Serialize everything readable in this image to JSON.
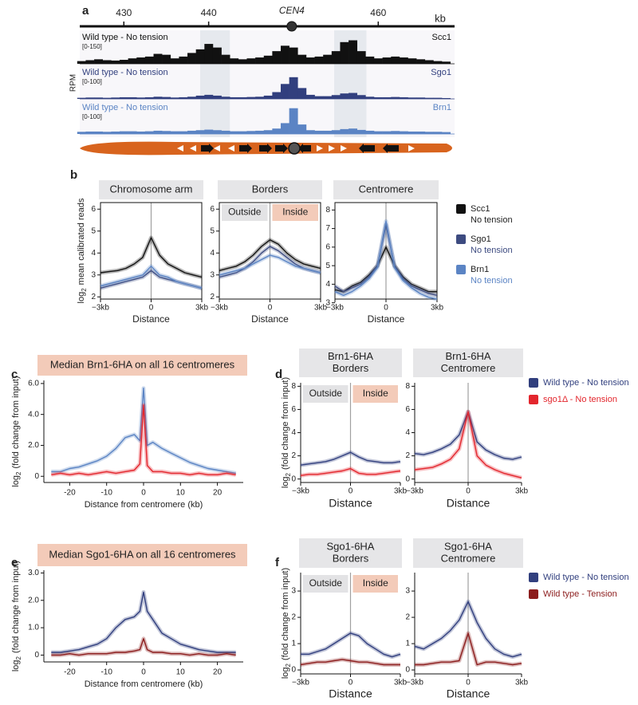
{
  "chart_data": [
    {
      "type": "track",
      "panel": "a",
      "label": "CEN4",
      "centromere": 449.8,
      "xunit": "kb",
      "xlim": [
        424.8,
        469
      ],
      "xticks": [
        430,
        440,
        460
      ],
      "ylabel": "RPM",
      "highlights": [
        [
          439,
          442.5
        ],
        [
          454.8,
          458.6
        ]
      ],
      "x": [
        425,
        426,
        427,
        428,
        429,
        430,
        431,
        432,
        433,
        434,
        435,
        436,
        437,
        438,
        439,
        440,
        441,
        442,
        443,
        444,
        445,
        446,
        447,
        448,
        449,
        450,
        451,
        452,
        453,
        454,
        455,
        456,
        457,
        458,
        459,
        460,
        461,
        462,
        463,
        464,
        465,
        466,
        467,
        468
      ],
      "tracks": [
        {
          "name": "Wild type - No tension",
          "range": "[0-150]",
          "protein": "Scc1",
          "color": "#111111",
          "ylim": [
            0,
            150
          ],
          "values": [
            15,
            20,
            25,
            20,
            18,
            22,
            30,
            35,
            40,
            55,
            50,
            30,
            40,
            60,
            80,
            110,
            90,
            50,
            30,
            25,
            30,
            35,
            45,
            70,
            100,
            90,
            50,
            35,
            40,
            50,
            70,
            120,
            130,
            70,
            40,
            30,
            35,
            40,
            35,
            30,
            25,
            20,
            15,
            12
          ]
        },
        {
          "name": "Wild type - No tension",
          "range": "[0-100]",
          "protein": "Sgo1",
          "color": "#313f7e",
          "ylim": [
            0,
            100
          ],
          "values": [
            4,
            5,
            5,
            4,
            5,
            6,
            6,
            5,
            6,
            8,
            7,
            5,
            6,
            8,
            12,
            15,
            12,
            8,
            6,
            6,
            7,
            8,
            12,
            25,
            55,
            80,
            40,
            15,
            10,
            10,
            14,
            20,
            22,
            14,
            8,
            6,
            6,
            7,
            6,
            5,
            5,
            4,
            4,
            3
          ]
        },
        {
          "name": "Wild type - No tension",
          "range": "[0-100]",
          "protein": "Brn1",
          "color": "#5b84c4",
          "ylim": [
            0,
            100
          ],
          "values": [
            8,
            9,
            9,
            8,
            9,
            10,
            10,
            9,
            10,
            12,
            11,
            10,
            10,
            12,
            14,
            16,
            14,
            12,
            10,
            10,
            11,
            12,
            14,
            20,
            40,
            95,
            35,
            14,
            12,
            12,
            14,
            18,
            20,
            15,
            12,
            10,
            10,
            11,
            10,
            9,
            9,
            8,
            8,
            7
          ]
        }
      ]
    },
    {
      "type": "line",
      "panel": "b",
      "x": [
        -3,
        -2.5,
        -2,
        -1.5,
        -1,
        -0.5,
        0,
        0.5,
        1,
        1.5,
        2,
        2.5,
        3
      ],
      "xlim": [
        -3,
        3
      ],
      "xticks": [
        {
          "value": -3,
          "label": "−3kb"
        },
        0,
        {
          "value": 3,
          "label": "3kb"
        }
      ],
      "xlabel": "Distance",
      "ylabel": {
        "prefix": "log",
        "sub": "2",
        "text": "mean calibrated reads"
      },
      "series": [
        {
          "name": "Scc1",
          "sub": "No tension",
          "color": "#111111"
        },
        {
          "name": "Sgo1",
          "sub": "No tension",
          "color": "#3d4b80"
        },
        {
          "name": "Brn1",
          "sub": "No tension",
          "color": "#5b84c4"
        }
      ],
      "facets": [
        {
          "title": [
            "Chromosome arm"
          ],
          "ylim": [
            1.9,
            6.3
          ],
          "yticks": [
            2,
            3,
            4,
            5,
            6
          ],
          "values": [
            [
              3.1,
              3.15,
              3.2,
              3.3,
              3.5,
              3.8,
              4.7,
              3.9,
              3.5,
              3.3,
              3.1,
              3.0,
              2.9
            ],
            [
              2.4,
              2.5,
              2.6,
              2.7,
              2.8,
              2.9,
              3.2,
              2.9,
              2.8,
              2.7,
              2.6,
              2.5,
              2.4
            ],
            [
              2.5,
              2.6,
              2.7,
              2.8,
              2.9,
              3.0,
              3.4,
              3.0,
              2.9,
              2.7,
              2.6,
              2.5,
              2.4
            ]
          ]
        },
        {
          "title": [
            "Borders"
          ],
          "regions": [
            "Outside",
            "Inside"
          ],
          "ylim": [
            1.9,
            6.3
          ],
          "yticks": [
            2,
            3,
            4,
            5,
            6
          ],
          "values": [
            [
              3.2,
              3.3,
              3.4,
              3.6,
              3.9,
              4.3,
              4.6,
              4.4,
              4.0,
              3.7,
              3.5,
              3.4,
              3.3
            ],
            [
              2.9,
              3.0,
              3.1,
              3.3,
              3.6,
              4.0,
              4.3,
              4.1,
              3.8,
              3.5,
              3.3,
              3.2,
              3.1
            ],
            [
              3.0,
              3.1,
              3.2,
              3.3,
              3.5,
              3.7,
              3.9,
              3.8,
              3.6,
              3.4,
              3.3,
              3.2,
              3.1
            ]
          ]
        },
        {
          "title": [
            "Centromere"
          ],
          "ylim": [
            3.2,
            8.4
          ],
          "yticks": [
            3,
            4,
            5,
            6,
            7,
            8
          ],
          "values": [
            [
              3.7,
              3.6,
              3.9,
              4.1,
              4.5,
              5.0,
              6.0,
              5.0,
              4.4,
              4.0,
              3.8,
              3.6,
              3.6
            ],
            [
              3.9,
              3.6,
              3.8,
              4.0,
              4.4,
              5.0,
              7.2,
              5.0,
              4.3,
              3.9,
              3.7,
              3.5,
              3.4
            ],
            [
              3.6,
              3.4,
              3.6,
              3.9,
              4.3,
              4.9,
              7.4,
              4.9,
              4.2,
              3.8,
              3.5,
              3.3,
              3.2
            ]
          ]
        }
      ]
    },
    {
      "type": "line",
      "panel": "c",
      "x": [
        -25,
        -22.5,
        -20,
        -17.5,
        -15,
        -12.5,
        -10,
        -7.5,
        -5,
        -2.5,
        -1,
        0,
        1,
        2.5,
        5,
        7.5,
        10,
        12.5,
        15,
        17.5,
        20,
        22.5,
        25
      ],
      "xlim": [
        -27,
        27
      ],
      "xticks": [
        -20,
        -10,
        0,
        10,
        20
      ],
      "xlabel": "Distance from centromere (kb)",
      "ylabel": {
        "prefix": "log",
        "sub": "2",
        "text": "(fold change from input)"
      },
      "series": [
        {
          "color": "#5b84c4"
        },
        {
          "color": "#e3262d"
        }
      ],
      "facets": [
        {
          "title": [
            "Median Brn1-6HA on all 16 centromeres"
          ],
          "ylim": [
            -0.4,
            6.2
          ],
          "yticks": [
            0,
            {
              "value": 2,
              "label": "2.0"
            },
            {
              "value": 4,
              "label": "4.0"
            },
            {
              "value": 6,
              "label": "6.0"
            }
          ],
          "values": [
            [
              0.3,
              0.3,
              0.5,
              0.6,
              0.8,
              1.0,
              1.3,
              1.8,
              2.5,
              2.7,
              2.3,
              5.7,
              2.0,
              2.2,
              1.8,
              1.5,
              1.2,
              0.9,
              0.7,
              0.5,
              0.4,
              0.3,
              0.2
            ],
            [
              0.1,
              0.2,
              0.1,
              0.2,
              0.1,
              0.2,
              0.3,
              0.2,
              0.3,
              0.4,
              0.8,
              4.6,
              0.7,
              0.3,
              0.3,
              0.2,
              0.2,
              0.1,
              0.2,
              0.1,
              0.1,
              0.2,
              0.1
            ]
          ]
        }
      ]
    },
    {
      "type": "line",
      "panel": "d",
      "x": [
        -3,
        -2.5,
        -2,
        -1.5,
        -1,
        -0.5,
        0,
        0.5,
        1,
        1.5,
        2,
        2.5,
        3
      ],
      "xlim": [
        -3,
        3
      ],
      "xticks": [
        {
          "value": -3,
          "label": "−3kb"
        },
        0,
        {
          "value": 3,
          "label": "3kb"
        }
      ],
      "xlabel": "Distance",
      "ylabel": {
        "prefix": "log",
        "sub": "2",
        "text": "(fold change from input)"
      },
      "series": [
        {
          "name": "Wild type - No tension",
          "color": "#313f7e"
        },
        {
          "name": "sgo1Δ - No tension",
          "color": "#e3262d"
        }
      ],
      "facets": [
        {
          "title": [
            "Brn1-6HA",
            "Borders"
          ],
          "regions": [
            "Outside",
            "Inside"
          ],
          "ylim": [
            -0.3,
            8.3
          ],
          "yticks": [
            0,
            2,
            4,
            6,
            8
          ],
          "values": [
            [
              1.2,
              1.3,
              1.4,
              1.5,
              1.7,
              2.0,
              2.3,
              1.9,
              1.6,
              1.5,
              1.4,
              1.4,
              1.5
            ],
            [
              0.3,
              0.4,
              0.4,
              0.5,
              0.6,
              0.7,
              0.9,
              0.5,
              0.4,
              0.4,
              0.5,
              0.6,
              0.7
            ]
          ]
        },
        {
          "title": [
            "Brn1-6HA",
            "Centromere"
          ],
          "ylim": [
            -0.3,
            8.3
          ],
          "yticks": [
            0,
            2,
            4,
            6,
            8
          ],
          "values": [
            [
              2.2,
              2.1,
              2.3,
              2.6,
              3.0,
              3.8,
              5.8,
              3.2,
              2.5,
              2.1,
              1.8,
              1.7,
              1.9
            ],
            [
              0.8,
              0.9,
              1.0,
              1.3,
              1.7,
              2.6,
              5.8,
              2.0,
              1.2,
              0.8,
              0.5,
              0.3,
              0.1
            ]
          ]
        }
      ]
    },
    {
      "type": "line",
      "panel": "e",
      "x": [
        -25,
        -22.5,
        -20,
        -17.5,
        -15,
        -12.5,
        -10,
        -7.5,
        -5,
        -2.5,
        -1,
        0,
        1,
        2.5,
        5,
        7.5,
        10,
        12.5,
        15,
        17.5,
        20,
        22.5,
        25
      ],
      "xlim": [
        -27,
        27
      ],
      "xticks": [
        -20,
        -10,
        0,
        10,
        20
      ],
      "xlabel": "Distance from centromere (kb)",
      "ylabel": {
        "prefix": "log",
        "sub": "2",
        "text": "(fold change from input)"
      },
      "series": [
        {
          "color": "#313f7e"
        },
        {
          "color": "#8c1d1d"
        }
      ],
      "facets": [
        {
          "title": [
            "Median Sgo1-6HA on all 16 centromeres"
          ],
          "ylim": [
            -0.25,
            3.1
          ],
          "yticks": [
            0,
            {
              "value": 1,
              "label": "1.0"
            },
            {
              "value": 2,
              "label": "2.0"
            },
            {
              "value": 3,
              "label": "3.0"
            }
          ],
          "values": [
            [
              0.1,
              0.1,
              0.15,
              0.2,
              0.3,
              0.4,
              0.6,
              1.0,
              1.3,
              1.4,
              1.6,
              2.3,
              1.6,
              1.3,
              0.8,
              0.6,
              0.4,
              0.3,
              0.2,
              0.15,
              0.1,
              0.1,
              0.1
            ],
            [
              0,
              0,
              0.05,
              0,
              0.05,
              0.05,
              0.05,
              0.1,
              0.1,
              0.15,
              0.2,
              0.6,
              0.2,
              0.1,
              0.1,
              0.05,
              0.05,
              0,
              0.05,
              0,
              0,
              0.05,
              0
            ]
          ]
        }
      ]
    },
    {
      "type": "line",
      "panel": "f",
      "x": [
        -3,
        -2.5,
        -2,
        -1.5,
        -1,
        -0.5,
        0,
        0.5,
        1,
        1.5,
        2,
        2.5,
        3
      ],
      "xlim": [
        -3,
        3
      ],
      "xticks": [
        {
          "value": -3,
          "label": "−3kb"
        },
        0,
        {
          "value": 3,
          "label": "3kb"
        }
      ],
      "xlabel": "Distance",
      "ylabel": {
        "prefix": "log",
        "sub": "2",
        "text": "(fold change from input)"
      },
      "series": [
        {
          "name": "Wild type - No tension",
          "color": "#313f7e"
        },
        {
          "name": "Wild type - Tension",
          "color": "#8c1d1d"
        }
      ],
      "facets": [
        {
          "title": [
            "Sgo1-6HA",
            "Borders"
          ],
          "regions": [
            "Outside",
            "Inside"
          ],
          "ylim": [
            -0.15,
            3.7
          ],
          "yticks": [
            0,
            1,
            2,
            3
          ],
          "values": [
            [
              0.6,
              0.6,
              0.7,
              0.8,
              1.0,
              1.2,
              1.4,
              1.3,
              1.0,
              0.8,
              0.6,
              0.5,
              0.6
            ],
            [
              0.2,
              0.25,
              0.3,
              0.3,
              0.35,
              0.4,
              0.35,
              0.3,
              0.3,
              0.25,
              0.2,
              0.2,
              0.2
            ]
          ]
        },
        {
          "title": [
            "Sgo1-6HA",
            "Centromere"
          ],
          "ylim": [
            -0.15,
            3.7
          ],
          "yticks": [
            0,
            1,
            2,
            3
          ],
          "values": [
            [
              0.9,
              0.8,
              1.0,
              1.2,
              1.5,
              1.9,
              2.6,
              1.8,
              1.2,
              0.8,
              0.6,
              0.5,
              0.6
            ],
            [
              0.2,
              0.2,
              0.25,
              0.3,
              0.3,
              0.35,
              1.4,
              0.2,
              0.3,
              0.3,
              0.25,
              0.2,
              0.25
            ]
          ]
        }
      ]
    }
  ]
}
